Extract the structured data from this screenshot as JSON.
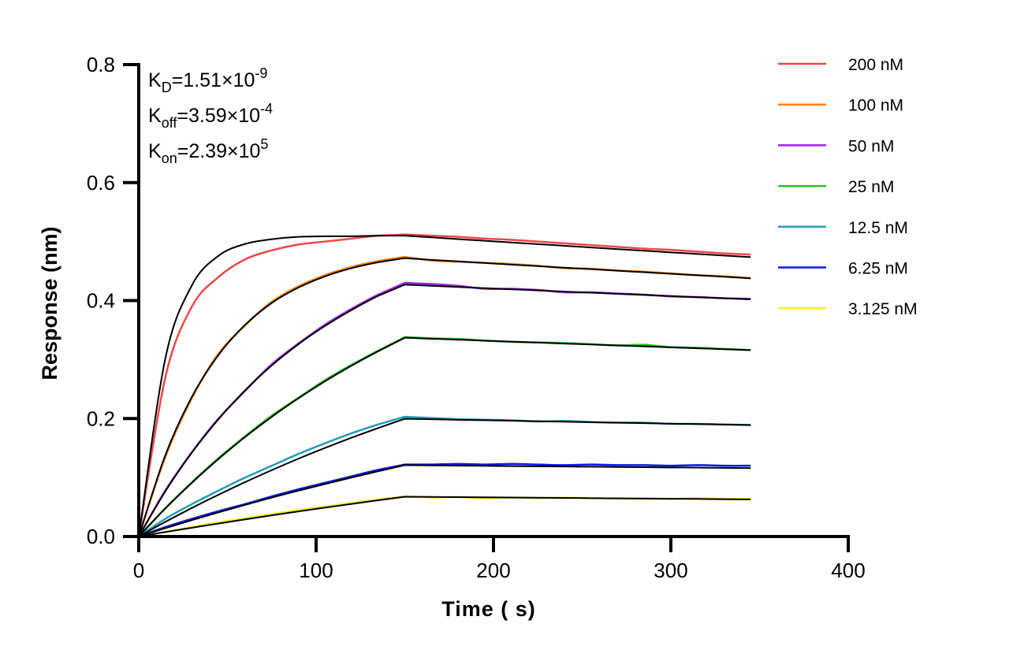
{
  "chart_data": {
    "type": "line",
    "xlabel": "Time ( s)",
    "ylabel": "Response (nm)",
    "xlim": [
      0,
      400
    ],
    "ylim": [
      0,
      0.8
    ],
    "xticks": [
      "0",
      "100",
      "200",
      "300",
      "400"
    ],
    "yticks": [
      "0.0",
      "0.2",
      "0.4",
      "0.6",
      "0.8"
    ],
    "grid": false,
    "legend_position": "right",
    "fit_color": "#000000",
    "annotations": [
      {
        "base": "K",
        "sub": "D",
        "text": "=1.51×10",
        "sup": "-9"
      },
      {
        "base": "K",
        "sub": "off",
        "text": "=3.59×10",
        "sup": "-4"
      },
      {
        "base": "K",
        "sub": "on",
        "text": "=2.39×10",
        "sup": "5"
      }
    ],
    "x": [
      0,
      15,
      30,
      45,
      60,
      75,
      90,
      105,
      120,
      135,
      150,
      165,
      180,
      195,
      210,
      225,
      240,
      255,
      270,
      285,
      300,
      315,
      330,
      345
    ],
    "series": [
      {
        "name": "200 nM",
        "color": "#f04848",
        "values": [
          0,
          0.27,
          0.39,
          0.44,
          0.47,
          0.485,
          0.495,
          0.5,
          0.505,
          0.51,
          0.512,
          0.51,
          0.508,
          0.505,
          0.503,
          0.5,
          0.497,
          0.494,
          0.491,
          0.488,
          0.486,
          0.483,
          0.48,
          0.478
        ],
        "fit": [
          0,
          0.302,
          0.426,
          0.476,
          0.496,
          0.504,
          0.508,
          0.509,
          0.509,
          0.51,
          0.51,
          0.5071,
          0.5042,
          0.5013,
          0.4985,
          0.4957,
          0.4928,
          0.49,
          0.4872,
          0.4845,
          0.4817,
          0.479,
          0.4763,
          0.4736
        ]
      },
      {
        "name": "100 nM",
        "color": "#ff8000",
        "values": [
          0,
          0.135,
          0.235,
          0.31,
          0.358,
          0.398,
          0.424,
          0.443,
          0.457,
          0.467,
          0.474,
          0.468,
          0.466,
          0.464,
          0.462,
          0.459,
          0.455,
          0.454,
          0.451,
          0.449,
          0.446,
          0.443,
          0.441,
          0.438
        ],
        "fit": [
          0,
          0.138,
          0.237,
          0.308,
          0.359,
          0.396,
          0.422,
          0.441,
          0.455,
          0.465,
          0.472,
          0.469,
          0.4664,
          0.4637,
          0.461,
          0.4584,
          0.4558,
          0.4532,
          0.4506,
          0.448,
          0.4454,
          0.4429,
          0.4404,
          0.4378
        ]
      },
      {
        "name": "50 nM",
        "color": "#a020f0",
        "values": [
          0,
          0.078,
          0.143,
          0.2,
          0.247,
          0.292,
          0.327,
          0.359,
          0.386,
          0.41,
          0.43,
          0.428,
          0.425,
          0.42,
          0.42,
          0.418,
          0.414,
          0.414,
          0.412,
          0.41,
          0.407,
          0.406,
          0.404,
          0.403
        ],
        "fit": [
          0,
          0.0766,
          0.1425,
          0.199,
          0.248,
          0.29,
          0.326,
          0.357,
          0.384,
          0.408,
          0.427,
          0.425,
          0.423,
          0.421,
          0.4191,
          0.4172,
          0.4152,
          0.4133,
          0.4114,
          0.4095,
          0.4076,
          0.4057,
          0.4038,
          0.402
        ]
      },
      {
        "name": "25 nM",
        "color": "#22c422",
        "values": [
          0,
          0.048,
          0.092,
          0.133,
          0.17,
          0.205,
          0.235,
          0.265,
          0.291,
          0.315,
          0.338,
          0.336,
          0.335,
          0.332,
          0.33,
          0.329,
          0.328,
          0.326,
          0.324,
          0.325,
          0.321,
          0.32,
          0.318,
          0.316
        ],
        "fit": [
          0,
          0.0475,
          0.0912,
          0.1315,
          0.1688,
          0.203,
          0.2343,
          0.2632,
          0.2897,
          0.3141,
          0.337,
          0.3353,
          0.3337,
          0.332,
          0.3304,
          0.3288,
          0.3271,
          0.3255,
          0.3239,
          0.3223,
          0.3207,
          0.3191,
          0.3176,
          0.316
        ]
      },
      {
        "name": "12.5 nM",
        "color": "#1f9fb8",
        "values": [
          0,
          0.03,
          0.055,
          0.078,
          0.1,
          0.12,
          0.14,
          0.158,
          0.175,
          0.19,
          0.203,
          0.201,
          0.199,
          0.198,
          0.197,
          0.195,
          0.196,
          0.194,
          0.193,
          0.193,
          0.191,
          0.191,
          0.19,
          0.189
        ],
        "fit": [
          0,
          0.0249,
          0.0485,
          0.0709,
          0.0922,
          0.1125,
          0.1319,
          0.1501,
          0.1675,
          0.1839,
          0.1996,
          0.1988,
          0.1979,
          0.1971,
          0.1963,
          0.1955,
          0.1946,
          0.1938,
          0.193,
          0.1922,
          0.1914,
          0.1906,
          0.1898,
          0.189
        ]
      },
      {
        "name": "6.25 nM",
        "color": "#0c18e8",
        "values": [
          0,
          0.016,
          0.03,
          0.043,
          0.055,
          0.068,
          0.08,
          0.091,
          0.102,
          0.113,
          0.122,
          0.122,
          0.123,
          0.122,
          0.123,
          0.122,
          0.121,
          0.122,
          0.121,
          0.121,
          0.12,
          0.121,
          0.12,
          0.12
        ],
        "fit": [
          0,
          0.0141,
          0.0278,
          0.041,
          0.0537,
          0.066,
          0.0777,
          0.089,
          0.1,
          0.1107,
          0.121,
          0.1206,
          0.1202,
          0.1198,
          0.1194,
          0.119,
          0.1187,
          0.1183,
          0.1179,
          0.1175,
          0.1171,
          0.1168,
          0.1164,
          0.116
        ]
      },
      {
        "name": "3.125 nM",
        "color": "#f2f020",
        "values": [
          0,
          0.008,
          0.016,
          0.024,
          0.031,
          0.038,
          0.045,
          0.051,
          0.057,
          0.063,
          0.068,
          0.066,
          0.067,
          0.065,
          0.066,
          0.065,
          0.066,
          0.065,
          0.064,
          0.065,
          0.064,
          0.065,
          0.064,
          0.064
        ],
        "fit": [
          0,
          0.0076,
          0.0149,
          0.0221,
          0.0291,
          0.0359,
          0.0426,
          0.049,
          0.0553,
          0.0614,
          0.0675,
          0.0671,
          0.0668,
          0.0664,
          0.0661,
          0.0657,
          0.0654,
          0.065,
          0.0647,
          0.0643,
          0.064,
          0.0637,
          0.0633,
          0.063
        ]
      }
    ]
  }
}
